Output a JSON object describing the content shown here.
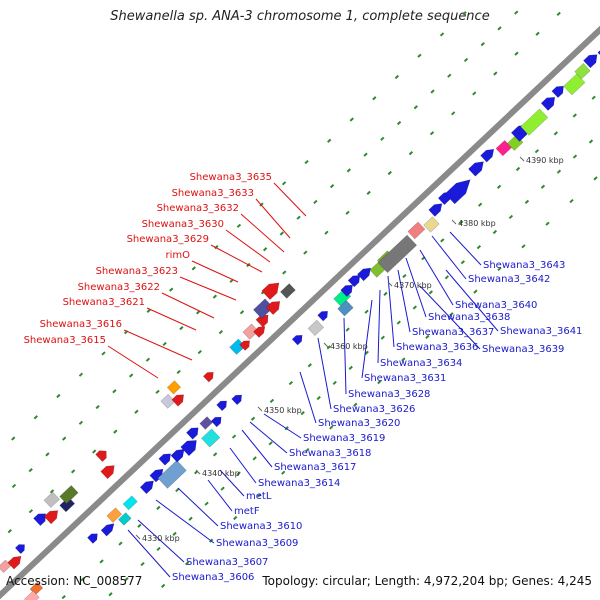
{
  "title": "Shewanella sp. ANA-3 chromosome 1, complete sequence",
  "footer": {
    "accession": "Accession: NC_008577",
    "summary": "Topology: circular; Length: 4,972,204 bp; Genes: 4,245"
  },
  "colors": {
    "backbone": "#888888",
    "label_left": "#dd1111",
    "label_right": "#1a1acc",
    "forward_gene": "#1a1adb",
    "reverse_gene": "#e01a1a",
    "dot": "#2d8a2d"
  },
  "ticks": [
    "4330 kbp",
    "4340 kbp",
    "4350 kbp",
    "4360 kbp",
    "4370 kbp",
    "4380 kbp",
    "4390 kbp"
  ],
  "labels_left": [
    "Shewana3_3635",
    "Shewana3_3633",
    "Shewana3_3632",
    "Shewana3_3630",
    "Shewana3_3629",
    "rimO",
    "Shewana3_3623",
    "Shewana3_3622",
    "Shewana3_3621",
    "Shewana3_3616",
    "Shewana3_3615"
  ],
  "labels_right": [
    "Shewana3_3643",
    "Shewana3_3642",
    "Shewana3_3640",
    "Shewana3_3638",
    "Shewana3_3641",
    "Shewana3_3637",
    "Shewana3_3636",
    "Shewana3_3639",
    "Shewana3_3634",
    "Shewana3_3631",
    "Shewana3_3628",
    "Shewana3_3626",
    "Shewana3_3620",
    "Shewana3_3619",
    "Shewana3_3618",
    "Shewana3_3617",
    "Shewana3_3614",
    "metL",
    "metF",
    "Shewana3_3610",
    "Shewana3_3609",
    "Shewana3_3607",
    "Shewana3_3606"
  ]
}
